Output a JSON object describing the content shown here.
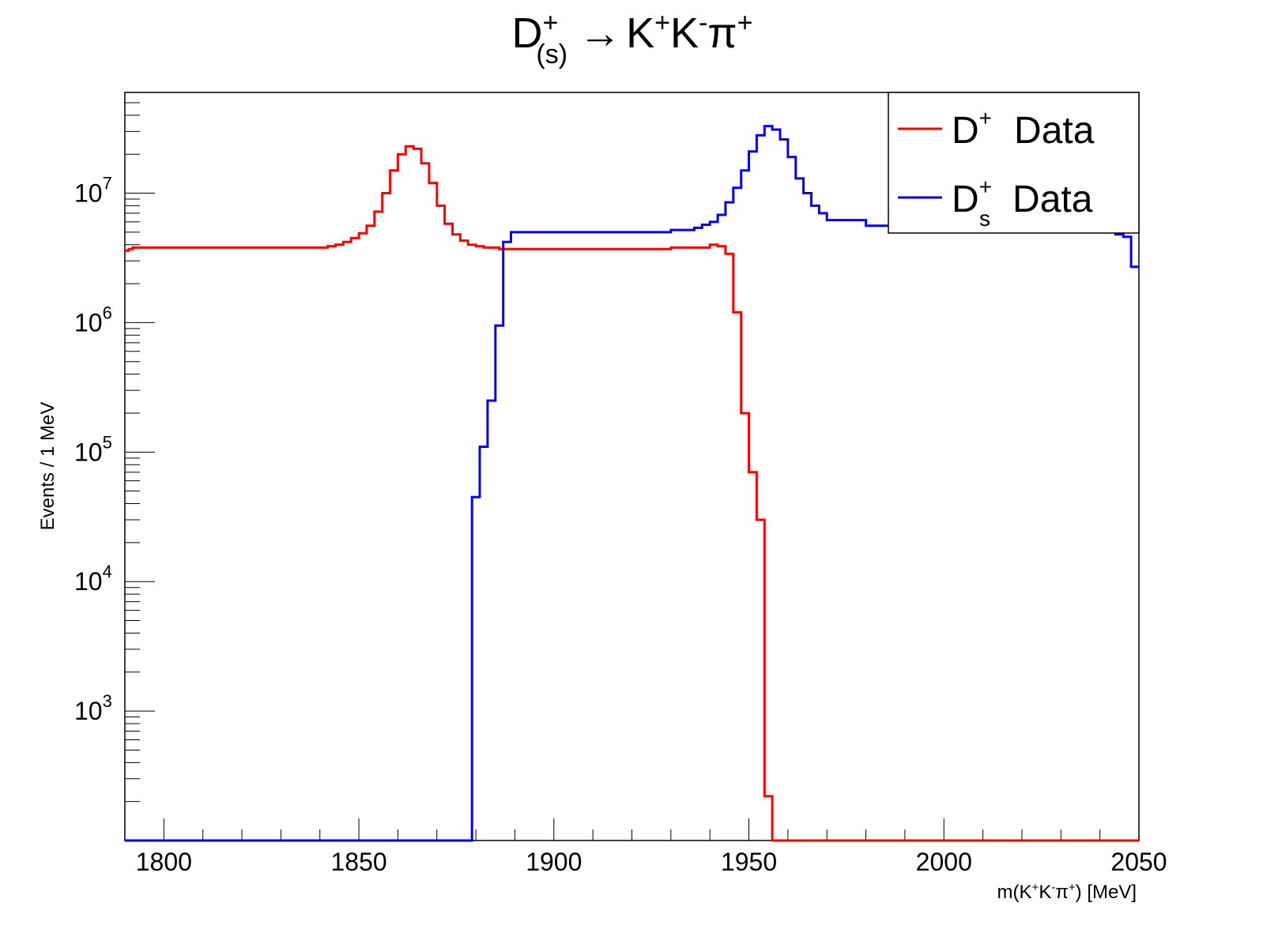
{
  "chart_data": {
    "type": "line",
    "title": {
      "main": "D",
      "sup": "+",
      "sub": "(s)",
      "arrow": "→",
      "k1": "K",
      "k1_sup": "+",
      "k2": "K",
      "k2_sup": "-",
      "pi": "π",
      "pi_sup": "+"
    },
    "xlabel": {
      "p1": "m(K",
      "s1": "+",
      "p2": "K",
      "s2": "-",
      "p3": "π",
      "s3": "+",
      "p4": ") [MeV]"
    },
    "ylabel": "Events / 1 MeV",
    "x_range": [
      1790,
      2050
    ],
    "y_range": [
      100,
      60000000
    ],
    "y_scale": "log",
    "x_ticks": [
      1800,
      1850,
      1900,
      1950,
      2000,
      2050
    ],
    "y_ticks": [
      {
        "base": "10",
        "exp": "3",
        "value": 1000
      },
      {
        "base": "10",
        "exp": "4",
        "value": 10000
      },
      {
        "base": "10",
        "exp": "5",
        "value": 100000
      },
      {
        "base": "10",
        "exp": "6",
        "value": 1000000
      },
      {
        "base": "10",
        "exp": "7",
        "value": 10000000
      }
    ],
    "legend": {
      "placement": "top-right",
      "entries": [
        {
          "label": "D",
          "sup": "+",
          "sub": "",
          "suffix": "Data",
          "color": "#ff0000"
        },
        {
          "label": "D",
          "sup": "+",
          "sub": "s",
          "suffix": "Data",
          "color": "#0000ff"
        }
      ]
    },
    "grid": false,
    "series": [
      {
        "color": "#ff0000",
        "points": [
          [
            1790,
            3600000
          ],
          [
            1791,
            3700000
          ],
          [
            1792,
            3800000
          ],
          [
            1794,
            3800000
          ],
          [
            1840,
            3800000
          ],
          [
            1842,
            3900000
          ],
          [
            1844,
            4000000
          ],
          [
            1846,
            4200000
          ],
          [
            1848,
            4500000
          ],
          [
            1850,
            4900000
          ],
          [
            1852,
            5600000
          ],
          [
            1854,
            7200000
          ],
          [
            1856,
            10000000
          ],
          [
            1858,
            15000000
          ],
          [
            1860,
            20000000
          ],
          [
            1862,
            23000000
          ],
          [
            1864,
            22000000
          ],
          [
            1866,
            17000000
          ],
          [
            1868,
            12000000
          ],
          [
            1870,
            8000000
          ],
          [
            1872,
            5800000
          ],
          [
            1874,
            4800000
          ],
          [
            1876,
            4300000
          ],
          [
            1878,
            4000000
          ],
          [
            1880,
            3900000
          ],
          [
            1882,
            3800000
          ],
          [
            1886,
            3700000
          ],
          [
            1890,
            3700000
          ],
          [
            1900,
            3700000
          ],
          [
            1910,
            3700000
          ],
          [
            1920,
            3700000
          ],
          [
            1930,
            3800000
          ],
          [
            1940,
            4000000
          ],
          [
            1942,
            3900000
          ],
          [
            1944,
            3400000
          ],
          [
            1946,
            1200000
          ],
          [
            1948,
            200000
          ],
          [
            1950,
            70000
          ],
          [
            1952,
            30000
          ],
          [
            1954,
            220
          ],
          [
            1956,
            100
          ],
          [
            2050,
            100
          ]
        ]
      },
      {
        "color": "#0000ff",
        "points": [
          [
            1790,
            100
          ],
          [
            1878,
            100
          ],
          [
            1879,
            45000
          ],
          [
            1881,
            110000
          ],
          [
            1883,
            250000
          ],
          [
            1885,
            950000
          ],
          [
            1887,
            4200000
          ],
          [
            1889,
            5000000
          ],
          [
            1891,
            5000000
          ],
          [
            1900,
            5000000
          ],
          [
            1910,
            5000000
          ],
          [
            1920,
            5000000
          ],
          [
            1930,
            5200000
          ],
          [
            1936,
            5400000
          ],
          [
            1938,
            5700000
          ],
          [
            1940,
            6000000
          ],
          [
            1942,
            6800000
          ],
          [
            1944,
            8500000
          ],
          [
            1946,
            11000000
          ],
          [
            1948,
            15000000
          ],
          [
            1950,
            21000000
          ],
          [
            1952,
            28000000
          ],
          [
            1954,
            33000000
          ],
          [
            1956,
            31000000
          ],
          [
            1958,
            26000000
          ],
          [
            1960,
            19000000
          ],
          [
            1962,
            13000000
          ],
          [
            1964,
            10000000
          ],
          [
            1966,
            8000000
          ],
          [
            1968,
            7000000
          ],
          [
            1970,
            6200000
          ],
          [
            1980,
            5600000
          ],
          [
            1990,
            5400000
          ],
          [
            2000,
            5300000
          ],
          [
            2010,
            5200000
          ],
          [
            2020,
            5200000
          ],
          [
            2030,
            5100000
          ],
          [
            2040,
            5000000
          ],
          [
            2044,
            4800000
          ],
          [
            2046,
            4600000
          ],
          [
            2048,
            2700000
          ],
          [
            2050,
            2700000
          ]
        ]
      }
    ]
  }
}
